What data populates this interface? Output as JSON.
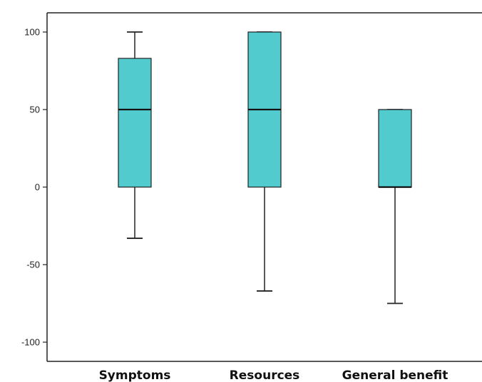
{
  "chart_data": {
    "type": "box",
    "categories": [
      "Symptoms",
      "Resources",
      "General benefit"
    ],
    "boxes": [
      {
        "category": "Symptoms",
        "whisker_low": -33,
        "q1": 0,
        "median": 50,
        "q3": 83,
        "whisker_high": 100
      },
      {
        "category": "Resources",
        "whisker_low": -67,
        "q1": 0,
        "median": 50,
        "q3": 100,
        "whisker_high": 100
      },
      {
        "category": "General benefit",
        "whisker_low": -75,
        "q1": 0,
        "median": 0,
        "q3": 50,
        "whisker_high": 50
      }
    ],
    "y_ticks": [
      {
        "value": 100,
        "label": "100"
      },
      {
        "value": 50,
        "label": "50"
      },
      {
        "value": 0,
        "label": "0"
      },
      {
        "value": -50,
        "label": "-50"
      },
      {
        "value": -100,
        "label": "-100"
      }
    ],
    "ylim": [
      -110,
      113
    ],
    "grid": false,
    "title": "",
    "xlabel": "",
    "ylabel": "",
    "box_color": "#52CBCF",
    "line_color": "#222222"
  }
}
